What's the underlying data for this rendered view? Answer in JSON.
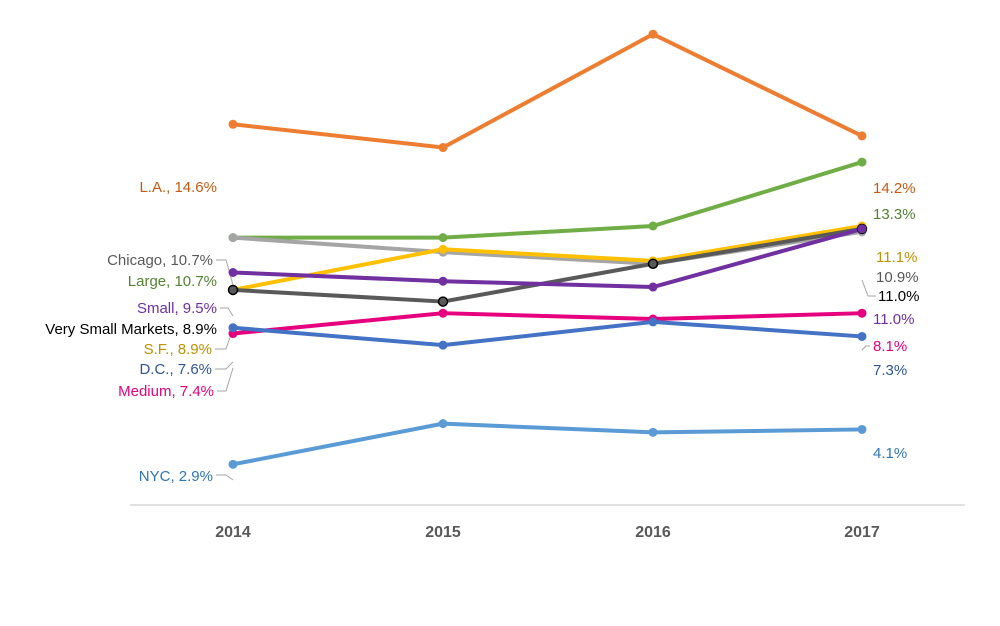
{
  "chart_data": {
    "type": "line",
    "title": "",
    "xlabel": "",
    "ylabel": "",
    "x": [
      "2014",
      "2015",
      "2016",
      "2017"
    ],
    "ylim": [
      1.5,
      17.5
    ],
    "grid": false,
    "legend": "none",
    "series": [
      {
        "name": "L.A.",
        "color": "#ED7D31",
        "values": [
          14.6,
          13.8,
          17.7,
          14.2
        ],
        "start_label": "L.A., 14.6%",
        "end_label": "14.2%",
        "label_color": "#C55A11"
      },
      {
        "name": "Large",
        "color": "#70AD47",
        "values": [
          10.7,
          10.7,
          11.1,
          13.3
        ],
        "start_label": "Large, 10.7%",
        "end_label": "13.3%",
        "label_color": "#548235"
      },
      {
        "name": "Chicago",
        "color": "#A5A5A5",
        "values": [
          10.7,
          10.2,
          9.8,
          10.9
        ],
        "start_label": "Chicago, 10.7%",
        "end_label": "10.9%",
        "label_color": "#595959"
      },
      {
        "name": "S.F.",
        "color": "#FFC000",
        "values": [
          8.9,
          10.3,
          9.9,
          11.1
        ],
        "start_label": "S.F., 8.9%",
        "end_label": "11.1%",
        "label_color": "#BF9000"
      },
      {
        "name": "Very Small Markets",
        "color": "#595959",
        "values": [
          8.9,
          8.5,
          9.8,
          11.0
        ],
        "start_label": "Very Small Markets, 8.9%",
        "end_label": "11.0%",
        "label_color": "#000000"
      },
      {
        "name": "Small",
        "color": "#7030A0",
        "values": [
          9.5,
          9.2,
          9.0,
          11.0
        ],
        "start_label": "Small, 9.5%",
        "end_label": "11.0%",
        "label_color": "#7030A0"
      },
      {
        "name": "Medium",
        "color": "#E6007E",
        "values": [
          7.4,
          8.1,
          7.9,
          8.1
        ],
        "start_label": "Medium, 7.4%",
        "end_label": "8.1%",
        "label_color": "#E6007E"
      },
      {
        "name": "D.C.",
        "color": "#4472C4",
        "values": [
          7.6,
          7.0,
          7.8,
          7.3
        ],
        "start_label": "D.C., 7.6%",
        "end_label": "7.3%",
        "label_color": "#2F5597"
      },
      {
        "name": "NYC",
        "color": "#5B9BD5",
        "values": [
          2.9,
          4.3,
          4.0,
          4.1
        ],
        "start_label": "NYC, 2.9%",
        "end_label": "4.1%",
        "label_color": "#2E75B6"
      }
    ]
  }
}
